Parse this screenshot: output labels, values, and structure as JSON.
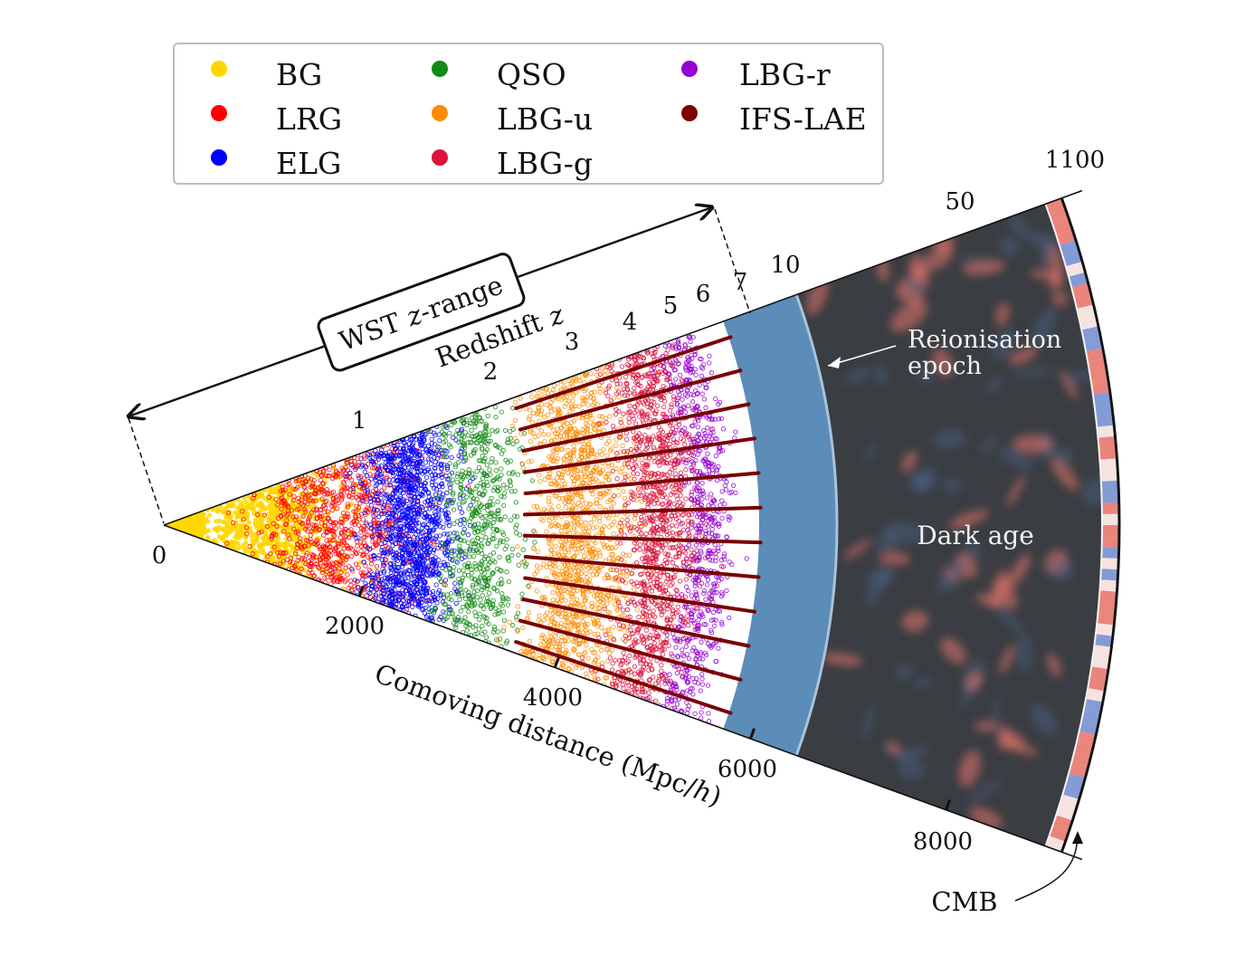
{
  "legend": {
    "items": [
      {
        "label": "BG",
        "color": "#FFD700"
      },
      {
        "label": "LRG",
        "color": "#FF0000"
      },
      {
        "label": "ELG",
        "color": "#0000FF"
      },
      {
        "label": "QSO",
        "color": "#138A13"
      },
      {
        "label": "LBG-u",
        "color": "#FF8C00"
      },
      {
        "label": "LBG-g",
        "color": "#DC143C"
      },
      {
        "label": "LBG-r",
        "color": "#9400D3"
      },
      {
        "label": "IFS-LAE",
        "color": "#800000"
      }
    ]
  },
  "wst_label": {
    "text": "WST",
    "z": "z",
    "range": "-range"
  },
  "redshift_axis": {
    "label": "Redshift",
    "var": "z",
    "ticks": [
      "1",
      "2",
      "3",
      "4",
      "5",
      "6",
      "7",
      "10",
      "50",
      "1100"
    ]
  },
  "distance_axis": {
    "label": "Comoving distance (Mpc/",
    "unit_var": "h",
    "close": ")",
    "ticks": [
      "0",
      "2000",
      "4000",
      "6000",
      "8000"
    ]
  },
  "annotations": {
    "reionisation_line1": "Reionisation",
    "reionisation_line2": "epoch",
    "dark_age": "Dark age",
    "cmb": "CMB"
  },
  "colors": {
    "reionisation_band": "#5b8db8",
    "dark_age": "#3a3d42",
    "cmb_red": "#e8756b",
    "cmb_blue": "#6f8fd6",
    "lae_line": "#7a0000"
  }
}
